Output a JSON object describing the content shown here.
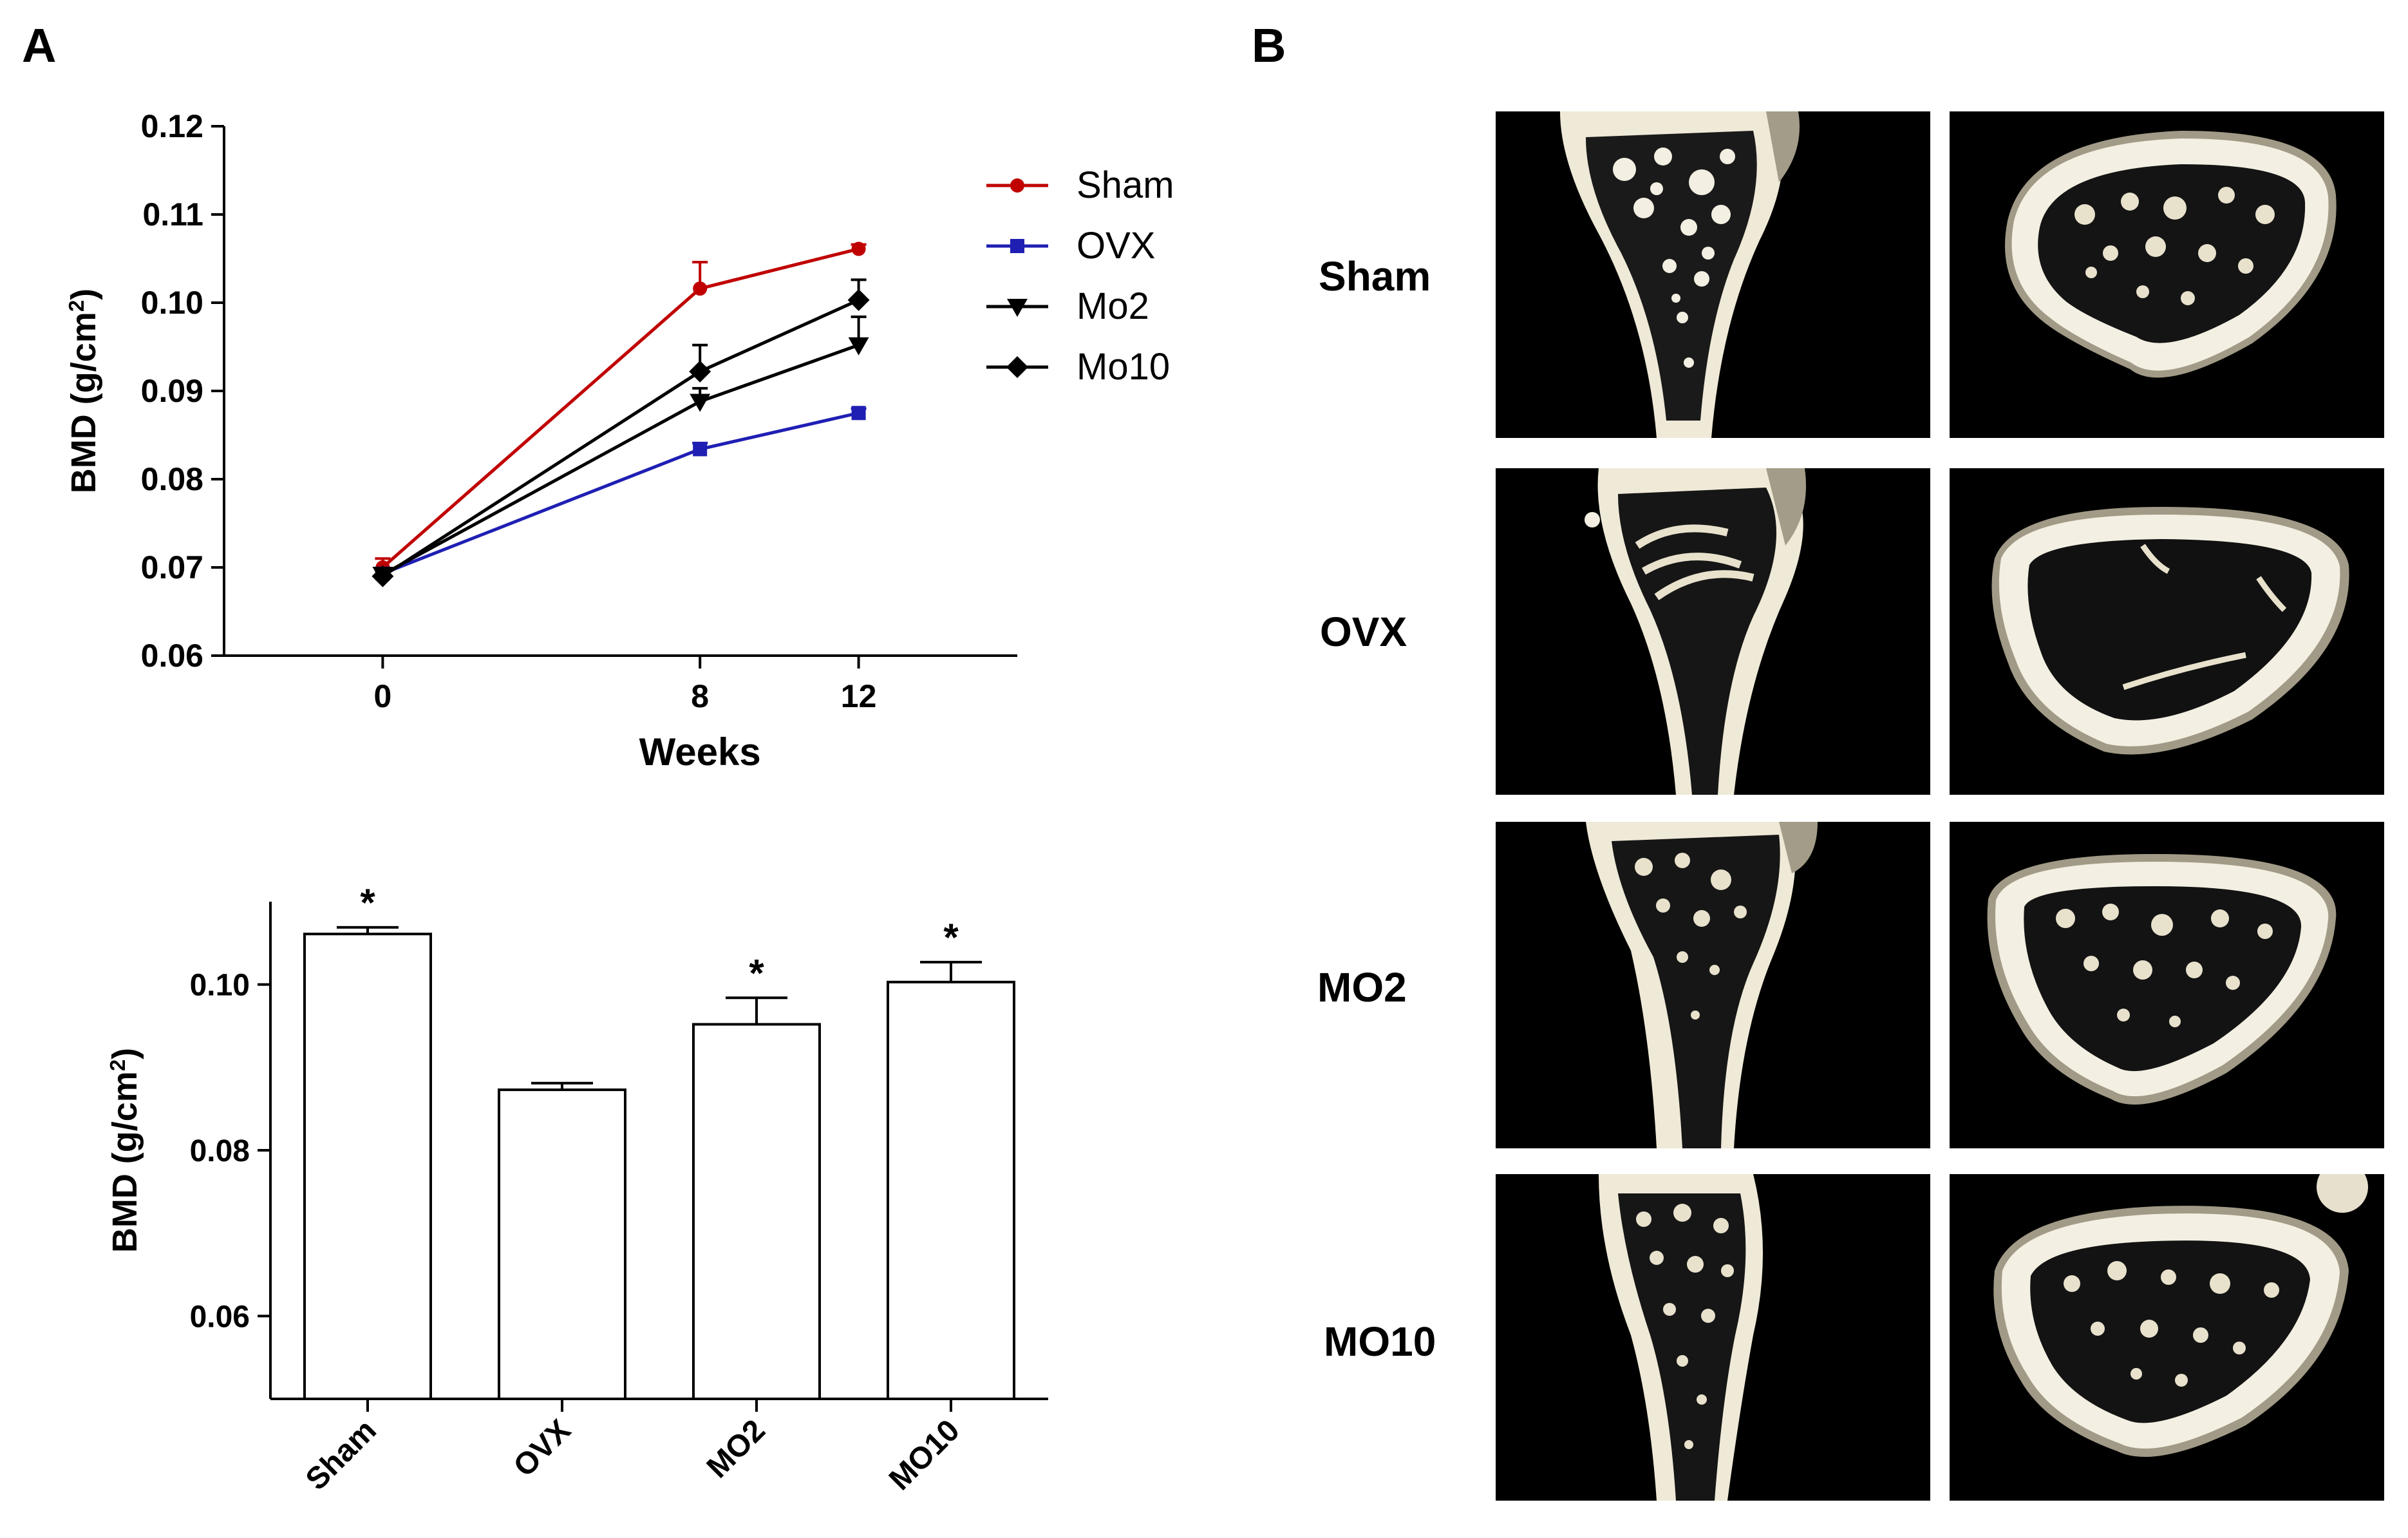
{
  "panels": {
    "a": "A",
    "b": "B"
  },
  "chart_data": [
    {
      "type": "line",
      "title": "",
      "xlabel": "Weeks",
      "ylabel": "BMD (g/cm²)",
      "ylabel_parts": {
        "main": "BMD (g/cm",
        "sup": "2",
        "end": ")"
      },
      "x": [
        0,
        8,
        12
      ],
      "xlim": [
        -4,
        16
      ],
      "xticks": [
        "0",
        "8",
        "12"
      ],
      "ylim": [
        0.06,
        0.12
      ],
      "yticks": [
        "0.06",
        "0.07",
        "0.08",
        "0.09",
        "0.10",
        "0.11",
        "0.12"
      ],
      "legend_position": "top-right",
      "series": [
        {
          "name": "Sham",
          "color": "#c00000",
          "marker": "circle",
          "values": [
            0.07,
            0.1016,
            0.1061
          ],
          "errors": [
            0.001,
            0.003,
            0.0005
          ]
        },
        {
          "name": "OVX",
          "color": "#1f1fb4",
          "marker": "square",
          "values": [
            0.0693,
            0.0834,
            0.0875
          ],
          "errors": [
            0.0005,
            0.0007,
            0.0005
          ]
        },
        {
          "name": "Mo2",
          "color": "#000000",
          "marker": "triangle-down",
          "values": [
            0.0692,
            0.0888,
            0.0952
          ],
          "errors": [
            0.0007,
            0.0015,
            0.0032
          ]
        },
        {
          "name": "Mo10",
          "color": "#000000",
          "marker": "diamond",
          "values": [
            0.069,
            0.0922,
            0.1003
          ],
          "errors": [
            0.0006,
            0.003,
            0.0023
          ]
        }
      ]
    },
    {
      "type": "bar",
      "title": "",
      "xlabel": "",
      "ylabel": "BMD (g/cm²)",
      "ylabel_parts": {
        "main": "BMD (g/cm",
        "sup": "2",
        "end": ")"
      },
      "categories": [
        "Sham",
        "OVX",
        "MO2",
        "MO10"
      ],
      "values": [
        0.1061,
        0.0873,
        0.0952,
        0.1003
      ],
      "errors": [
        0.0008,
        0.0008,
        0.0032,
        0.0024
      ],
      "significance": [
        "*",
        "",
        "*",
        "*"
      ],
      "ylim": [
        0.05,
        0.11
      ],
      "yticks": [
        "0.06",
        "0.08",
        "0.10"
      ]
    }
  ],
  "panel_b": {
    "rows": [
      "Sham",
      "OVX",
      "MO2",
      "MO10"
    ]
  },
  "colors": {
    "bone": "#f3efe2",
    "shadow": "#9c9581",
    "background": "#000000"
  }
}
